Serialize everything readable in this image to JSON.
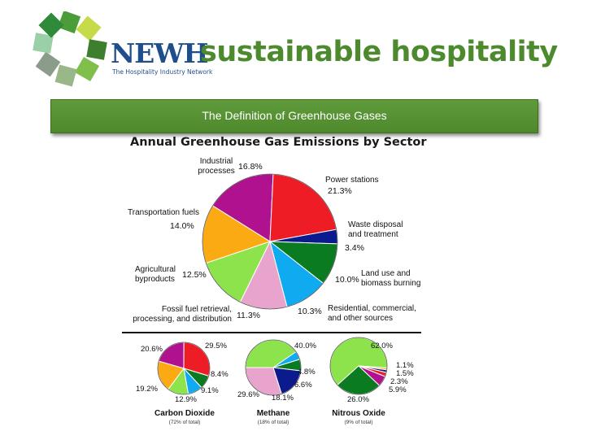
{
  "header": {
    "brand_short": "NEWH",
    "brand_tagline": "The Hospitality Industry Network",
    "brand_main": "sustainable hospitality",
    "slide_title": "The Definition of Greenhouse Gases"
  },
  "colors": {
    "purple": "#b0128f",
    "red": "#ee1c25",
    "navy": "#0b1a8c",
    "green": "#0a7b21",
    "blue": "#10aaf0",
    "pink": "#e8a4cc",
    "lime": "#8de34c",
    "orange": "#fcaa13",
    "brown": "#7a4a1a",
    "yellow": "#f4e21a"
  },
  "chart_data": [
    {
      "type": "pie",
      "title": "Annual Greenhouse Gas Emissions by Sector",
      "slices": [
        {
          "label": "Industrial processes",
          "value": 16.8,
          "display": "16.8%",
          "color": "#b0128f"
        },
        {
          "label": "Power stations",
          "value": 21.3,
          "display": "21.3%",
          "color": "#ee1c25"
        },
        {
          "label": "Waste disposal and treatment",
          "value": 3.4,
          "display": "3.4%",
          "color": "#0b1a8c"
        },
        {
          "label": "Land use and biomass burning",
          "value": 10.0,
          "display": "10.0%",
          "color": "#0a7b21"
        },
        {
          "label": "Residential, commercial, and other sources",
          "value": 10.3,
          "display": "10.3%",
          "color": "#10aaf0"
        },
        {
          "label": "Fossil fuel retrieval, processing, and distribution",
          "value": 11.3,
          "display": "11.3%",
          "color": "#e8a4cc"
        },
        {
          "label": "Agricultural byproducts",
          "value": 12.5,
          "display": "12.5%",
          "color": "#8de34c"
        },
        {
          "label": "Transportation fuels",
          "value": 14.0,
          "display": "14.0%",
          "color": "#fcaa13"
        }
      ]
    },
    {
      "type": "pie",
      "title": "Carbon Dioxide",
      "subtitle": "(72% of total)",
      "slices": [
        {
          "value": 20.6,
          "display": "20.6%",
          "color": "#b0128f"
        },
        {
          "value": 29.5,
          "display": "29.5%",
          "color": "#ee1c25"
        },
        {
          "value": 0.0,
          "display": "",
          "color": "#0b1a8c"
        },
        {
          "value": 8.4,
          "display": "8.4%",
          "color": "#0a7b21"
        },
        {
          "value": 9.1,
          "display": "9.1%",
          "color": "#10aaf0"
        },
        {
          "value": 12.9,
          "display": "12.9%",
          "color": "#8de34c"
        },
        {
          "value": 19.2,
          "display": "19.2%",
          "color": "#fcaa13"
        }
      ]
    },
    {
      "type": "pie",
      "title": "Methane",
      "subtitle": "(18% of total)",
      "slices": [
        {
          "value": 40.0,
          "display": "40.0%",
          "color": "#8de34c"
        },
        {
          "value": 4.8,
          "display": "4.8%",
          "color": "#10aaf0"
        },
        {
          "value": 6.6,
          "display": "6.6%",
          "color": "#0a7b21"
        },
        {
          "value": 18.1,
          "display": "18.1%",
          "color": "#0b1a8c"
        },
        {
          "value": 29.6,
          "display": "29.6%",
          "color": "#e8a4cc"
        }
      ]
    },
    {
      "type": "pie",
      "title": "Nitrous Oxide",
      "subtitle": "(9% of total)",
      "slices": [
        {
          "value": 62.0,
          "display": "62.0%",
          "color": "#8de34c"
        },
        {
          "value": 1.1,
          "display": "1.1%",
          "color": "#fcaa13"
        },
        {
          "value": 1.5,
          "display": "1.5%",
          "color": "#0b1a8c"
        },
        {
          "value": 2.3,
          "display": "2.3%",
          "color": "#ee1c25"
        },
        {
          "value": 5.9,
          "display": "5.9%",
          "color": "#b0128f"
        },
        {
          "value": 26.0,
          "display": "26.0%",
          "color": "#0a7b21"
        }
      ]
    }
  ]
}
